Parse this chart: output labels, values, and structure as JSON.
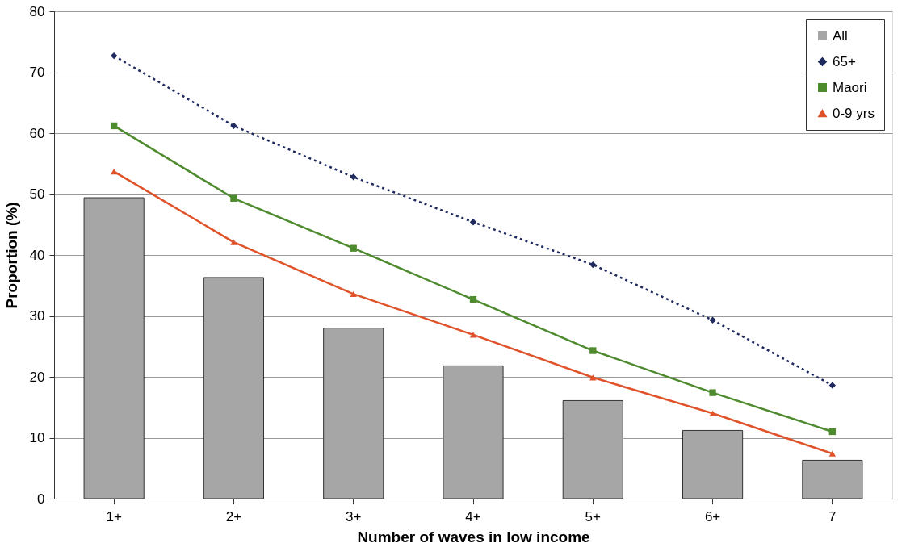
{
  "chart_data": {
    "type": "bar",
    "xlabel": "Number of waves in low income",
    "ylabel": "Proportion (%)",
    "categories": [
      "1+",
      "2+",
      "3+",
      "4+",
      "5+",
      "6+",
      "7"
    ],
    "series": [
      {
        "name": "All",
        "color": "#a6a6a6",
        "values": [
          49.4,
          36.3,
          28.0,
          21.8,
          16.1,
          11.2,
          6.3
        ]
      },
      {
        "name": "65+",
        "type": "line",
        "color": "#1f2a5e",
        "marker": "diamond",
        "line_style": "dotted",
        "values": [
          72.7,
          61.2,
          52.8,
          45.4,
          38.4,
          29.3,
          18.6
        ]
      },
      {
        "name": "Maori",
        "type": "line",
        "color": "#4e8a2e",
        "marker": "square",
        "line_style": "solid",
        "values": [
          61.2,
          49.3,
          41.1,
          32.7,
          24.3,
          17.4,
          11.0
        ]
      },
      {
        "name": "0-9 yrs",
        "type": "line",
        "color": "#e0532a",
        "marker": "triangle",
        "line_style": "solid",
        "values": [
          53.7,
          42.1,
          33.6,
          26.9,
          19.9,
          14.0,
          7.4
        ]
      }
    ],
    "ylim": [
      0,
      80
    ],
    "yticks": [
      0,
      10,
      20,
      30,
      40,
      50,
      60,
      70,
      80
    ],
    "grid": "y",
    "legend": "top right"
  }
}
